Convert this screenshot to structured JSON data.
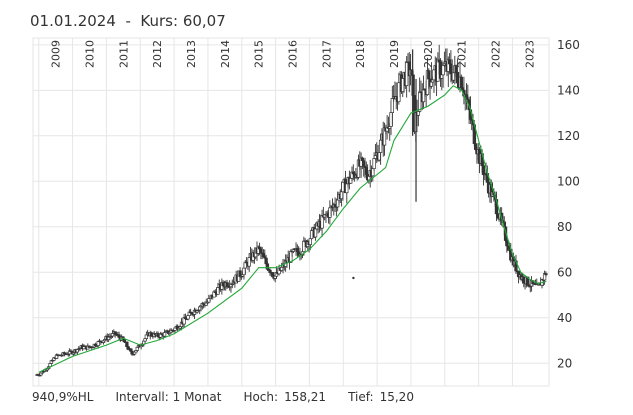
{
  "header": {
    "date": "01.01.2024",
    "separator": "-",
    "price_label": "Kurs:",
    "price_value": "60,07"
  },
  "footer": {
    "performance": "940,9%HL",
    "interval": "Intervall: 1 Monat",
    "high_label": "Hoch:",
    "high_value": "158,21",
    "low_label": "Tief:",
    "low_value": "15,20"
  },
  "chart_data": {
    "type": "candlestick",
    "title": "",
    "x_tick_labels": [
      "2009",
      "2010",
      "2011",
      "2012",
      "2013",
      "2014",
      "2015",
      "2016",
      "2017",
      "2018",
      "2019",
      "2020",
      "2021",
      "2022",
      "2023"
    ],
    "y_tick_labels": [
      "20",
      "40",
      "60",
      "80",
      "100",
      "120",
      "140",
      "160"
    ],
    "ylim": [
      10,
      163
    ],
    "xlim": [
      2008.83,
      2024.08
    ],
    "grid": true,
    "y_axis_side": "right",
    "moving_average_color": "#22a838",
    "candle_color": "#333333",
    "close_series": {
      "points": [
        [
          2009.0,
          15
        ],
        [
          2009.25,
          18
        ],
        [
          2009.5,
          23
        ],
        [
          2009.75,
          24
        ],
        [
          2010.0,
          25
        ],
        [
          2010.25,
          27
        ],
        [
          2010.5,
          27
        ],
        [
          2010.75,
          29
        ],
        [
          2011.0,
          31
        ],
        [
          2011.25,
          33
        ],
        [
          2011.5,
          30
        ],
        [
          2011.75,
          24
        ],
        [
          2012.0,
          28
        ],
        [
          2012.25,
          33
        ],
        [
          2012.5,
          32
        ],
        [
          2012.75,
          33
        ],
        [
          2013.0,
          35
        ],
        [
          2013.25,
          38
        ],
        [
          2013.5,
          42
        ],
        [
          2013.75,
          45
        ],
        [
          2014.0,
          47
        ],
        [
          2014.25,
          52
        ],
        [
          2014.5,
          55
        ],
        [
          2014.75,
          56
        ],
        [
          2015.0,
          60
        ],
        [
          2015.25,
          66
        ],
        [
          2015.5,
          70
        ],
        [
          2015.75,
          63
        ],
        [
          2016.0,
          58
        ],
        [
          2016.25,
          63
        ],
        [
          2016.5,
          68
        ],
        [
          2016.75,
          70
        ],
        [
          2017.0,
          75
        ],
        [
          2017.25,
          80
        ],
        [
          2017.5,
          85
        ],
        [
          2017.75,
          90
        ],
        [
          2018.0,
          97
        ],
        [
          2018.25,
          102
        ],
        [
          2018.5,
          107
        ],
        [
          2018.75,
          103
        ],
        [
          2019.0,
          112
        ],
        [
          2019.25,
          122
        ],
        [
          2019.5,
          135
        ],
        [
          2019.75,
          145
        ],
        [
          2020.0,
          150
        ],
        [
          2020.1,
          125
        ],
        [
          2020.25,
          135
        ],
        [
          2020.5,
          145
        ],
        [
          2020.75,
          148
        ],
        [
          2021.0,
          150
        ],
        [
          2021.25,
          148
        ],
        [
          2021.5,
          145
        ],
        [
          2021.75,
          128
        ],
        [
          2022.0,
          112
        ],
        [
          2022.25,
          100
        ],
        [
          2022.5,
          90
        ],
        [
          2022.75,
          78
        ],
        [
          2023.0,
          65
        ],
        [
          2023.25,
          58
        ],
        [
          2023.5,
          55
        ],
        [
          2023.75,
          53
        ],
        [
          2024.0,
          60
        ]
      ]
    },
    "moving_average": {
      "points": [
        [
          2009.0,
          16
        ],
        [
          2010.0,
          23
        ],
        [
          2011.0,
          28
        ],
        [
          2011.5,
          31
        ],
        [
          2012.0,
          28
        ],
        [
          2012.5,
          30
        ],
        [
          2013.0,
          33
        ],
        [
          2014.0,
          42
        ],
        [
          2015.0,
          53
        ],
        [
          2015.5,
          62
        ],
        [
          2016.0,
          62
        ],
        [
          2016.5,
          65
        ],
        [
          2017.0,
          70
        ],
        [
          2017.5,
          78
        ],
        [
          2018.0,
          88
        ],
        [
          2018.5,
          97
        ],
        [
          2019.0,
          103
        ],
        [
          2019.25,
          106
        ],
        [
          2019.5,
          118
        ],
        [
          2020.0,
          130
        ],
        [
          2020.5,
          133
        ],
        [
          2021.0,
          138
        ],
        [
          2021.25,
          142
        ],
        [
          2021.5,
          140
        ],
        [
          2021.75,
          132
        ],
        [
          2022.0,
          118
        ],
        [
          2022.25,
          104
        ],
        [
          2022.5,
          93
        ],
        [
          2022.75,
          80
        ],
        [
          2023.0,
          68
        ],
        [
          2023.25,
          60
        ],
        [
          2023.5,
          57
        ],
        [
          2023.75,
          55
        ],
        [
          2024.0,
          56
        ]
      ]
    },
    "spikes": [
      {
        "x": 2020.15,
        "high": 145,
        "low": 91
      },
      {
        "x": 2020.05,
        "high": 158,
        "low": 120
      }
    ],
    "stray_point": {
      "x": 2018.3,
      "y": 57.5
    }
  }
}
